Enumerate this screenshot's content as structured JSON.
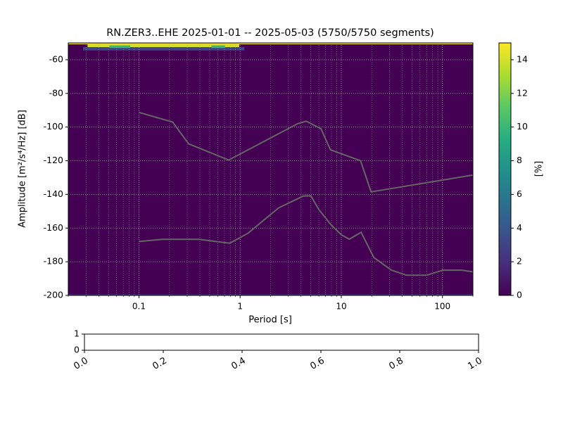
{
  "chart_data": [
    {
      "type": "ppsd",
      "title": "RN.ZER3..EHE   2025-01-01 -- 2025-05-03  (5750/5750 segments)",
      "xlabel": "Period [s]",
      "ylabel": "Amplitude [m²/s⁴/Hz] [dB]",
      "xscale": "log",
      "xlim": [
        0.02,
        200
      ],
      "ylim": [
        -200,
        -50
      ],
      "xticks": [
        0.1,
        1,
        10,
        100
      ],
      "xminorticks": [
        0.02,
        0.03,
        0.04,
        0.05,
        0.06,
        0.07,
        0.08,
        0.09,
        0.2,
        0.3,
        0.4,
        0.5,
        0.6,
        0.7,
        0.8,
        0.9,
        2,
        3,
        4,
        5,
        6,
        7,
        8,
        9,
        20,
        30,
        40,
        50,
        60,
        70,
        80,
        90,
        200
      ],
      "yticks": [
        -200,
        -180,
        -160,
        -140,
        -120,
        -100,
        -80,
        -60
      ],
      "grid": true,
      "cmap": "viridis",
      "heatmap": [
        {
          "x": [
            0.02,
            200
          ],
          "y": [
            -50.8,
            -50
          ],
          "value": 15
        },
        {
          "x": [
            0.028,
            1.1
          ],
          "y": [
            -54.5,
            -52.5
          ],
          "value": 3
        },
        {
          "x": [
            0.031,
            0.98
          ],
          "y": [
            -52.5,
            -50.8
          ],
          "value": 14
        },
        {
          "x": [
            0.051,
            0.082
          ],
          "y": [
            -53,
            -51.5
          ],
          "value": 10
        },
        {
          "x": [
            0.52,
            0.71
          ],
          "y": [
            -53,
            -51.5
          ],
          "value": 10
        },
        {
          "x": [
            0.02,
            200
          ],
          "y": [
            -200,
            -199.3
          ],
          "value": 2
        }
      ],
      "series": [
        {
          "color": "#666666",
          "x": [
            0.1,
            0.215,
            0.31,
            0.77,
            3.7,
            4.5,
            6.3,
            7.8,
            15.5,
            19.7,
            200
          ],
          "values": [
            -91.3,
            -97,
            -110,
            -119.6,
            -98,
            -96.5,
            -101,
            -113.5,
            -120,
            -138.5,
            -128.5
          ]
        },
        {
          "color": "#666666",
          "x": [
            0.1,
            0.17,
            0.39,
            0.79,
            1.2,
            2.4,
            4.2,
            5,
            6,
            7.9,
            10,
            12,
            15.7,
            21,
            31.3,
            44,
            70,
            101,
            155,
            200
          ],
          "values": [
            -168,
            -166.7,
            -166.7,
            -169,
            -163,
            -148,
            -141,
            -140.8,
            -149,
            -158,
            -164,
            -166.6,
            -162.5,
            -177.5,
            -185,
            -188,
            -188,
            -185,
            -185,
            -186
          ]
        }
      ],
      "colorbar": {
        "label": "[%]",
        "lim": [
          0,
          15
        ],
        "ticks": [
          0,
          2,
          4,
          6,
          8,
          10,
          12,
          14
        ]
      }
    },
    {
      "type": "empty",
      "xlim": [
        0,
        1
      ],
      "ylim": [
        0,
        1
      ],
      "xticks": [
        {
          "value": 0,
          "label": "0.0"
        },
        {
          "value": 0.2,
          "label": "0.2"
        },
        {
          "value": 0.4,
          "label": "0.4"
        },
        {
          "value": 0.6,
          "label": "0.6"
        },
        {
          "value": 0.8,
          "label": "0.8"
        },
        {
          "value": 1,
          "label": "1.0"
        }
      ],
      "yticks": [
        0,
        1
      ]
    }
  ]
}
